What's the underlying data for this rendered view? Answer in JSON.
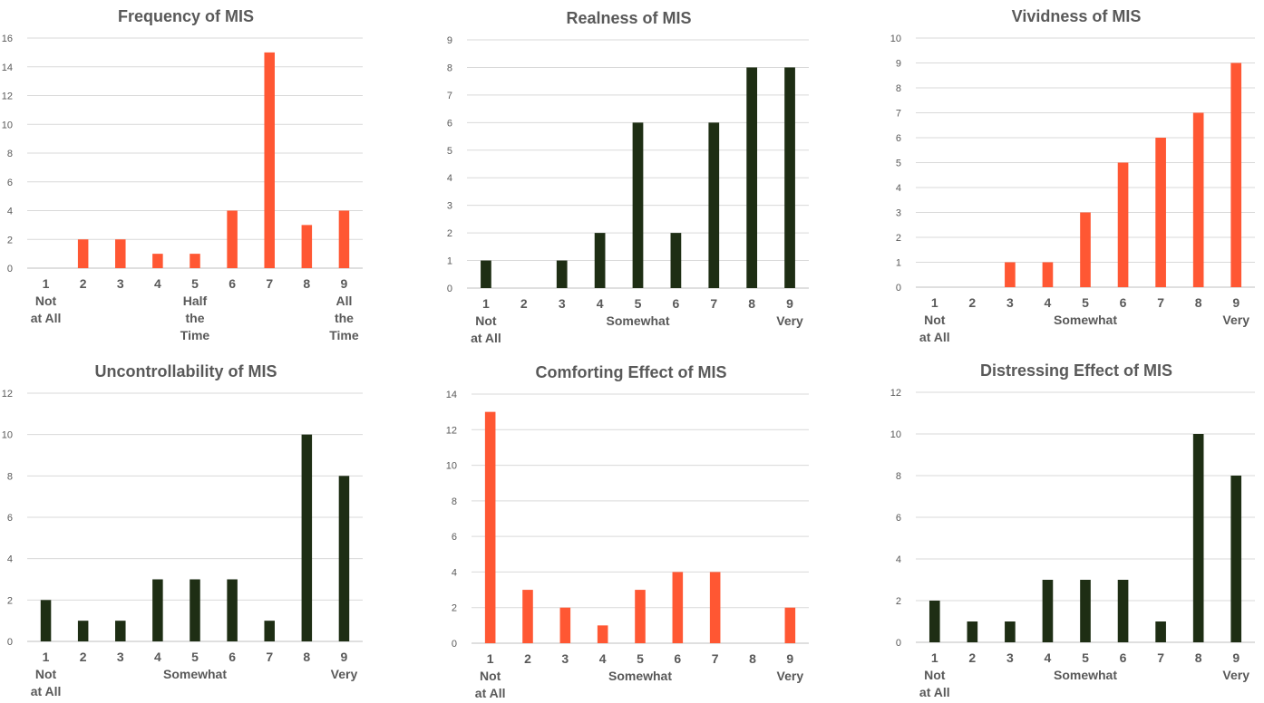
{
  "colors": {
    "orange": "#FF5733",
    "dark_green": "#1E2E14"
  },
  "chart_data": [
    {
      "type": "bar",
      "title": "Frequency of MIS",
      "categories": [
        "1",
        "2",
        "3",
        "4",
        "5",
        "6",
        "7",
        "8",
        "9"
      ],
      "category_labels": [
        [
          "1",
          "Not",
          "at All"
        ],
        [
          "2"
        ],
        [
          "3"
        ],
        [
          "4"
        ],
        [
          "5",
          "Half",
          "the",
          "Time"
        ],
        [
          "6"
        ],
        [
          "7"
        ],
        [
          "8"
        ],
        [
          "9",
          "All",
          "the",
          "Time"
        ]
      ],
      "values": [
        0,
        2,
        2,
        1,
        1,
        4,
        15,
        3,
        4
      ],
      "ylim": [
        0,
        16
      ],
      "ystep": 2,
      "color": "orange",
      "grid": true
    },
    {
      "type": "bar",
      "title": "Realness of MIS",
      "categories": [
        "1",
        "2",
        "3",
        "4",
        "5",
        "6",
        "7",
        "8",
        "9"
      ],
      "category_labels": [
        [
          "1",
          "Not",
          "at All"
        ],
        [
          "2"
        ],
        [
          "3"
        ],
        [
          "4"
        ],
        [
          "5",
          "Somewhat"
        ],
        [
          "6"
        ],
        [
          "7"
        ],
        [
          "8"
        ],
        [
          "9",
          "Very"
        ]
      ],
      "values": [
        1,
        0,
        1,
        2,
        6,
        2,
        6,
        8,
        8
      ],
      "ylim": [
        0,
        9
      ],
      "ystep": 1,
      "color": "dark_green",
      "grid": true
    },
    {
      "type": "bar",
      "title": "Vividness of MIS",
      "categories": [
        "1",
        "2",
        "3",
        "4",
        "5",
        "6",
        "7",
        "8",
        "9"
      ],
      "category_labels": [
        [
          "1",
          "Not",
          "at All"
        ],
        [
          "2"
        ],
        [
          "3"
        ],
        [
          "4"
        ],
        [
          "5",
          "Somewhat"
        ],
        [
          "6"
        ],
        [
          "7"
        ],
        [
          "8"
        ],
        [
          "9",
          "Very"
        ]
      ],
      "values": [
        0,
        0,
        1,
        1,
        3,
        5,
        6,
        7,
        9
      ],
      "ylim": [
        0,
        10
      ],
      "ystep": 1,
      "color": "orange",
      "grid": true
    },
    {
      "type": "bar",
      "title": "Uncontrollability of MIS",
      "categories": [
        "1",
        "2",
        "3",
        "4",
        "5",
        "6",
        "7",
        "8",
        "9"
      ],
      "category_labels": [
        [
          "1",
          "Not",
          "at All"
        ],
        [
          "2"
        ],
        [
          "3"
        ],
        [
          "4"
        ],
        [
          "5",
          "Somewhat"
        ],
        [
          "6"
        ],
        [
          "7"
        ],
        [
          "8"
        ],
        [
          "9",
          "Very"
        ]
      ],
      "values": [
        2,
        1,
        1,
        3,
        3,
        3,
        1,
        10,
        8
      ],
      "ylim": [
        0,
        12
      ],
      "ystep": 2,
      "color": "dark_green",
      "grid": true
    },
    {
      "type": "bar",
      "title": "Comforting Effect of MIS",
      "categories": [
        "1",
        "2",
        "3",
        "4",
        "5",
        "6",
        "7",
        "8",
        "9"
      ],
      "category_labels": [
        [
          "1",
          "Not",
          "at All"
        ],
        [
          "2"
        ],
        [
          "3"
        ],
        [
          "4"
        ],
        [
          "5",
          "Somewhat"
        ],
        [
          "6"
        ],
        [
          "7"
        ],
        [
          "8"
        ],
        [
          "9",
          "Very"
        ]
      ],
      "values": [
        13,
        3,
        2,
        1,
        3,
        4,
        4,
        0,
        2
      ],
      "ylim": [
        0,
        14
      ],
      "ystep": 2,
      "color": "orange",
      "grid": true
    },
    {
      "type": "bar",
      "title": "Distressing Effect of MIS",
      "categories": [
        "1",
        "2",
        "3",
        "4",
        "5",
        "6",
        "7",
        "8",
        "9"
      ],
      "category_labels": [
        [
          "1",
          "Not",
          "at All"
        ],
        [
          "2"
        ],
        [
          "3"
        ],
        [
          "4"
        ],
        [
          "5",
          "Somewhat"
        ],
        [
          "6"
        ],
        [
          "7"
        ],
        [
          "8"
        ],
        [
          "9",
          "Very"
        ]
      ],
      "values": [
        2,
        1,
        1,
        3,
        3,
        3,
        1,
        10,
        8
      ],
      "ylim": [
        0,
        12
      ],
      "ystep": 2,
      "color": "dark_green",
      "grid": true
    }
  ]
}
